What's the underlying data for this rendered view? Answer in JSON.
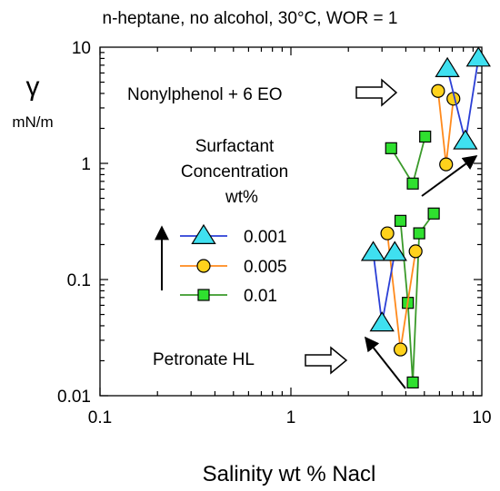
{
  "chart_data": {
    "type": "line",
    "title": "n-heptane, no alcohol, 30°C, WOR = 1",
    "xlabel": "Salinity wt % Nacl",
    "ylabel": "γ",
    "yunit": "mN/m",
    "xscale": "log",
    "yscale": "log",
    "xlim": [
      0.1,
      10
    ],
    "ylim": [
      0.01,
      10
    ],
    "xticks": [
      {
        "value": 0.1,
        "label": "0.1"
      },
      {
        "value": 1,
        "label": "1"
      },
      {
        "value": 10,
        "label": "10"
      }
    ],
    "yticks": [
      {
        "value": 0.01,
        "label": "0.01"
      },
      {
        "value": 0.1,
        "label": "0.1"
      },
      {
        "value": 1,
        "label": "1"
      },
      {
        "value": 10,
        "label": "10"
      }
    ],
    "grid": false,
    "legend_title": [
      "Surfactant",
      "Concentration",
      "wt%"
    ],
    "legend_position": "center-left",
    "series": [
      {
        "name": "0.001",
        "marker": "triangle",
        "line_color": "#2b3fd6",
        "fill_color": "#3fe0f0",
        "groups": [
          {
            "x": [
              2.7,
              3.0,
              3.5
            ],
            "y": [
              0.17,
              0.042,
              0.17
            ]
          },
          {
            "x": [
              6.6,
              8.2,
              9.6
            ],
            "y": [
              6.5,
              1.55,
              8.0
            ]
          }
        ]
      },
      {
        "name": "0.005",
        "marker": "circle",
        "line_color": "#ff8a1c",
        "fill_color": "#ffd21c",
        "groups": [
          {
            "x": [
              3.2,
              3.75,
              4.5
            ],
            "y": [
              0.25,
              0.025,
              0.175
            ]
          },
          {
            "x": [
              5.9,
              6.5,
              7.1
            ],
            "y": [
              4.2,
              0.98,
              3.6
            ]
          }
        ]
      },
      {
        "name": "0.01",
        "marker": "square",
        "line_color": "#3a9a2a",
        "fill_color": "#2fe02f",
        "groups": [
          {
            "x": [
              3.75,
              4.1,
              4.35,
              4.7,
              5.6
            ],
            "y": [
              0.32,
              0.063,
              0.013,
              0.25,
              0.37
            ]
          },
          {
            "x": [
              3.35,
              4.35,
              5.05
            ],
            "y": [
              1.35,
              0.67,
              1.7
            ]
          }
        ]
      }
    ],
    "annotations": [
      {
        "text": "Nonylphenol  + 6 EO",
        "x": 0.2,
        "y": 4.5,
        "arrow": "hollow-right"
      },
      {
        "text": "Petronate HL",
        "x": 0.25,
        "y": 0.033,
        "arrow": "hollow-right"
      },
      {
        "arrow": "solid-up",
        "x": 0.17,
        "y_from": 0.11,
        "y_to": 0.4
      },
      {
        "arrow": "diagonal",
        "x_from": 4.4,
        "y_from": 0.045,
        "x_to": 3.3,
        "y_to": 0.022,
        "note": "lower diagonal arrow near Petronate data"
      },
      {
        "arrow": "diagonal",
        "x_from": 4.6,
        "y_from": 0.55,
        "x_to": 10.0,
        "y_to": 0.98,
        "note": "upper diagonal arrow toward Nonylphenol data"
      }
    ]
  }
}
